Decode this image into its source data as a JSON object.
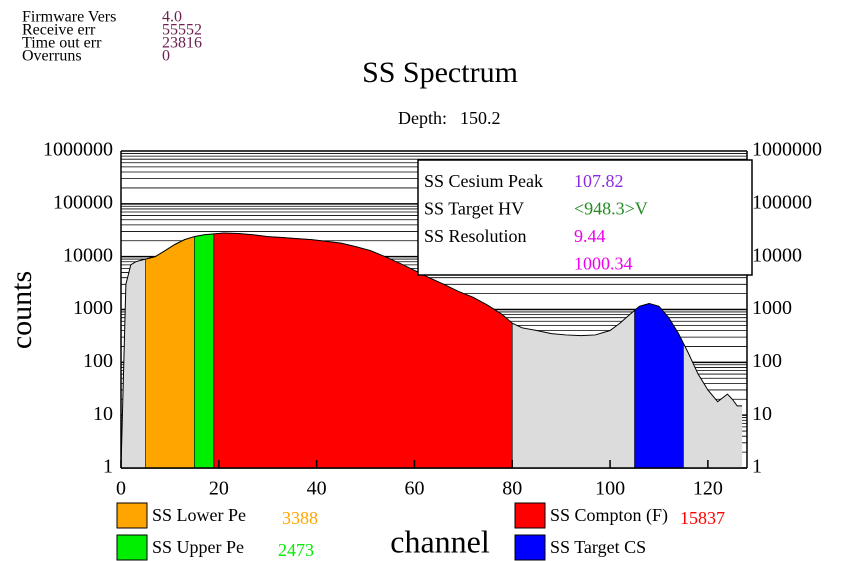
{
  "header": {
    "rows": [
      {
        "label": "Firmware Vers",
        "value": "4.0"
      },
      {
        "label": "Receive err",
        "value": "55552"
      },
      {
        "label": "Time out err",
        "value": "23816"
      },
      {
        "label": "Overruns",
        "value": "0"
      }
    ]
  },
  "chart_data": {
    "type": "area",
    "title": "SS Spectrum",
    "subtitle_label": "Depth:",
    "subtitle_value": "150.2",
    "xlabel": "channel",
    "ylabel": "counts",
    "log_y": true,
    "grid": true,
    "minor_grid": true,
    "xlim": [
      0,
      128
    ],
    "ylim": [
      1,
      1000000
    ],
    "xticks": [
      0,
      20,
      40,
      60,
      80,
      100,
      120
    ],
    "yticks": [
      1,
      10,
      100,
      1000,
      10000,
      100000,
      1000000
    ],
    "x": [
      0,
      1,
      2,
      3,
      4,
      5,
      7,
      9,
      11,
      13,
      15,
      17,
      19,
      21,
      24,
      27,
      30,
      33,
      36,
      39,
      42,
      45,
      48,
      51,
      54,
      57,
      60,
      63,
      66,
      69,
      72,
      75,
      78,
      80,
      82,
      85,
      88,
      91,
      94,
      97,
      100,
      102,
      104,
      106,
      108,
      110,
      112,
      114,
      116,
      118,
      120,
      122,
      124,
      125,
      126,
      127
    ],
    "values": [
      1,
      3000,
      7000,
      8000,
      8500,
      9000,
      10000,
      13000,
      17000,
      21000,
      24000,
      26000,
      27000,
      28000,
      27500,
      26000,
      24000,
      23000,
      22000,
      21000,
      19500,
      18000,
      15500,
      13000,
      10000,
      7500,
      5500,
      4000,
      3000,
      2200,
      1700,
      1200,
      800,
      550,
      450,
      400,
      350,
      330,
      320,
      330,
      400,
      550,
      800,
      1150,
      1300,
      1150,
      700,
      350,
      150,
      60,
      30,
      18,
      25,
      20,
      15,
      15
    ],
    "base_color": "#dcdcdc",
    "regions": [
      {
        "name": "SS Lower Pe",
        "start": 5,
        "end": 15,
        "color": "#ffa500",
        "value": 3388
      },
      {
        "name": "SS Upper Pe",
        "start": 15,
        "end": 19,
        "color": "#00ee00",
        "value": 2473
      },
      {
        "name": "SS Compton (F)",
        "start": 19,
        "end": 80,
        "color": "#ff0000",
        "value": 15837
      },
      {
        "name": "SS Target CS",
        "start": 105,
        "end": 115,
        "color": "#0000ff"
      }
    ],
    "info": [
      {
        "label": "SS Cesium Peak",
        "value": "107.82",
        "color": "#8a2be2"
      },
      {
        "label": "SS Target HV",
        "value": "<948.3>V",
        "color": "#228b22"
      },
      {
        "label": "SS Resolution",
        "value": "9.44",
        "color": "#ee00ee"
      },
      {
        "value": "1000.34",
        "color": "#ee00ee"
      }
    ]
  }
}
